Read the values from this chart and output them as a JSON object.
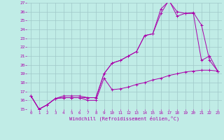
{
  "title": "",
  "xlabel": "Windchill (Refroidissement éolien,°C)",
  "ylabel": "",
  "xlim": [
    -0.5,
    23.5
  ],
  "ylim": [
    15,
    27
  ],
  "yticks": [
    15,
    16,
    17,
    18,
    19,
    20,
    21,
    22,
    23,
    24,
    25,
    26,
    27
  ],
  "xticks": [
    0,
    1,
    2,
    3,
    4,
    5,
    6,
    7,
    8,
    9,
    10,
    11,
    12,
    13,
    14,
    15,
    16,
    17,
    18,
    19,
    20,
    21,
    22,
    23
  ],
  "bg_color": "#c0ece6",
  "grid_color": "#a0c8c8",
  "line_color": "#aa00aa",
  "line1_x": [
    0,
    1,
    2,
    3,
    4,
    5,
    6,
    7,
    8,
    9,
    10,
    11,
    12,
    13,
    14,
    15,
    16,
    17,
    18,
    19,
    20,
    21,
    22,
    23
  ],
  "line1_y": [
    16.5,
    15.0,
    15.5,
    16.2,
    16.3,
    16.3,
    16.3,
    16.0,
    16.0,
    18.5,
    17.2,
    17.3,
    17.5,
    17.8,
    18.0,
    18.3,
    18.5,
    18.8,
    19.0,
    19.2,
    19.3,
    19.4,
    19.4,
    19.3
  ],
  "line2_x": [
    0,
    1,
    2,
    3,
    4,
    5,
    6,
    7,
    8,
    9,
    10,
    11,
    12,
    13,
    14,
    15,
    16,
    17,
    18,
    19,
    20,
    21,
    22,
    23
  ],
  "line2_y": [
    16.5,
    15.0,
    15.5,
    16.2,
    16.3,
    16.3,
    16.3,
    16.3,
    16.3,
    19.0,
    20.2,
    20.5,
    21.0,
    21.5,
    23.3,
    23.5,
    26.3,
    27.2,
    26.0,
    25.8,
    25.8,
    20.5,
    21.0,
    19.3
  ],
  "line3_x": [
    0,
    1,
    2,
    3,
    4,
    5,
    6,
    7,
    8,
    9,
    10,
    11,
    12,
    13,
    14,
    15,
    16,
    17,
    18,
    19,
    20,
    21,
    22,
    23
  ],
  "line3_y": [
    16.5,
    15.0,
    15.5,
    16.2,
    16.5,
    16.5,
    16.5,
    16.3,
    16.3,
    19.0,
    20.2,
    20.5,
    21.0,
    21.5,
    23.3,
    23.5,
    25.8,
    27.3,
    25.5,
    25.8,
    25.9,
    24.5,
    20.5,
    19.3
  ],
  "figsize": [
    3.2,
    2.0
  ],
  "dpi": 100
}
